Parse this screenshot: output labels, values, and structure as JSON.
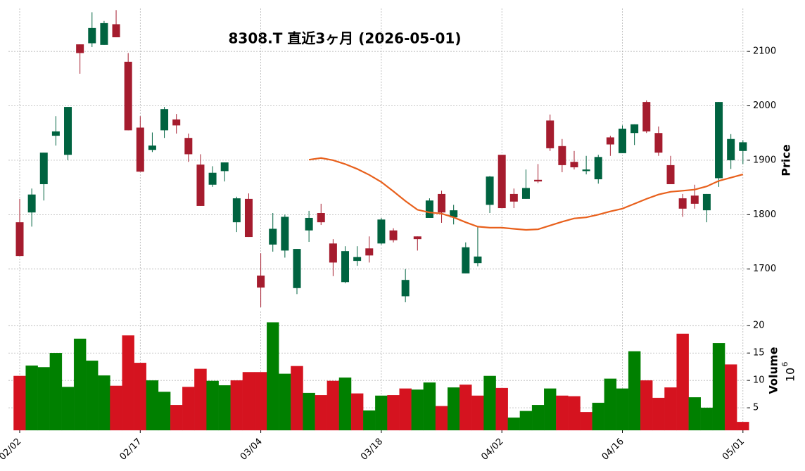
{
  "chart_data": {
    "type": "candlestick",
    "title": "8308.T  直近3ヶ月  (2026-05-01)",
    "categories": [
      "02/02",
      null,
      null,
      null,
      null,
      null,
      null,
      null,
      null,
      null,
      "02/17",
      null,
      null,
      null,
      null,
      null,
      null,
      null,
      null,
      null,
      "03/04",
      null,
      null,
      null,
      null,
      null,
      null,
      null,
      null,
      null,
      "03/18",
      null,
      null,
      null,
      null,
      null,
      null,
      null,
      null,
      null,
      "04/02",
      null,
      null,
      null,
      null,
      null,
      null,
      null,
      null,
      null,
      "04/16",
      null,
      null,
      null,
      null,
      null,
      null,
      null,
      null,
      null,
      "05/01"
    ],
    "open": [
      1786,
      1804,
      1856,
      1945,
      1910,
      2113,
      2115,
      2112,
      2150,
      2081,
      1960,
      1919,
      1955,
      1975,
      1941,
      1892,
      1855,
      1880,
      1786,
      1829,
      1688,
      1745,
      1734,
      1665,
      1771,
      1803,
      1747,
      1676,
      1715,
      1738,
      1747,
      1771,
      1650,
      1760,
      1794,
      1838,
      1795,
      1692,
      1711,
      1818,
      1910,
      1838,
      1829,
      1864,
      1973,
      1926,
      1897,
      1880,
      1865,
      1942,
      1913,
      1950,
      2007,
      1950,
      1891,
      1830,
      1835,
      1808,
      1867,
      1900,
      1917
    ],
    "high": [
      1829,
      1848,
      1914,
      1981,
      1998,
      2113,
      2172,
      2156,
      2176,
      2097,
      1981,
      1951,
      1998,
      1985,
      1949,
      1911,
      1889,
      1896,
      1833,
      1839,
      1729,
      1803,
      1800,
      1737,
      1807,
      1820,
      1755,
      1742,
      1742,
      1760,
      1794,
      1775,
      1700,
      1760,
      1830,
      1844,
      1818,
      1749,
      1778,
      1871,
      1910,
      1848,
      1883,
      1893,
      1984,
      1939,
      1917,
      1908,
      1910,
      1945,
      1964,
      1966,
      2010,
      1962,
      1908,
      1838,
      1855,
      1838,
      2007,
      1948,
      1937
    ],
    "low": [
      1724,
      1778,
      1826,
      1927,
      1900,
      2059,
      2108,
      2112,
      2126,
      1955,
      1879,
      1915,
      1941,
      1949,
      1897,
      1816,
      1851,
      1861,
      1768,
      1759,
      1630,
      1732,
      1721,
      1654,
      1750,
      1781,
      1687,
      1674,
      1706,
      1712,
      1745,
      1749,
      1639,
      1734,
      1794,
      1785,
      1782,
      1692,
      1705,
      1803,
      1812,
      1812,
      1829,
      1858,
      1917,
      1878,
      1883,
      1874,
      1857,
      1908,
      1913,
      1928,
      1950,
      1908,
      1856,
      1796,
      1811,
      1786,
      1851,
      1884,
      1893
    ],
    "close": [
      1724,
      1837,
      1914,
      1953,
      1998,
      2097,
      2143,
      2152,
      2126,
      1955,
      1879,
      1927,
      1994,
      1964,
      1911,
      1816,
      1877,
      1896,
      1830,
      1759,
      1666,
      1774,
      1796,
      1737,
      1794,
      1786,
      1712,
      1733,
      1722,
      1725,
      1791,
      1753,
      1680,
      1755,
      1826,
      1804,
      1808,
      1740,
      1723,
      1870,
      1812,
      1824,
      1849,
      1861,
      1922,
      1891,
      1887,
      1883,
      1906,
      1929,
      1958,
      1966,
      1953,
      1914,
      1856,
      1811,
      1820,
      1838,
      2007,
      1939,
      1933
    ],
    "up_color": "#006340",
    "down_color": "#a51c2e",
    "moving_average": {
      "color": "#e8601c",
      "values": [
        null,
        null,
        null,
        null,
        null,
        null,
        null,
        null,
        null,
        null,
        null,
        null,
        null,
        null,
        null,
        null,
        null,
        null,
        null,
        null,
        null,
        null,
        null,
        null,
        1901,
        1904,
        1900,
        1893,
        1884,
        1873,
        1860,
        1843,
        1825,
        1809,
        1804,
        1802,
        1795,
        1786,
        1778,
        1776,
        1776,
        1774,
        1772,
        1773,
        1780,
        1787,
        1793,
        1795,
        1800,
        1806,
        1811,
        1820,
        1829,
        1837,
        1842,
        1844,
        1846,
        1852,
        1862,
        1868,
        1874
      ]
    },
    "y_label": "Price",
    "ylim": [
      1626,
      2179
    ],
    "yticks": [
      1700,
      1800,
      1900,
      2000,
      2100
    ],
    "grid": true,
    "volume": {
      "label": "Volume",
      "multiplier": {
        "base": "10",
        "exponent": "6"
      },
      "up_color": "#008000",
      "down_color": "#d5131f",
      "values": [
        10.8,
        12.7,
        12.4,
        15.0,
        8.8,
        17.6,
        13.6,
        10.9,
        9.0,
        18.2,
        13.2,
        10.0,
        7.9,
        5.5,
        8.8,
        12.1,
        9.9,
        9.1,
        10.0,
        11.5,
        11.5,
        20.6,
        11.2,
        12.6,
        7.7,
        7.3,
        9.9,
        10.5,
        7.6,
        4.5,
        7.2,
        7.3,
        8.5,
        8.3,
        9.6,
        5.3,
        8.7,
        9.2,
        7.2,
        10.8,
        8.6,
        3.2,
        4.4,
        5.5,
        8.5,
        7.2,
        7.1,
        4.2,
        5.9,
        10.3,
        8.5,
        15.3,
        10.0,
        6.8,
        8.7,
        18.5,
        6.9,
        5.0,
        16.8,
        12.9,
        2.4
      ],
      "ylim": [
        0.9,
        22.6
      ],
      "yticks": [
        5,
        10,
        15,
        20
      ]
    }
  }
}
